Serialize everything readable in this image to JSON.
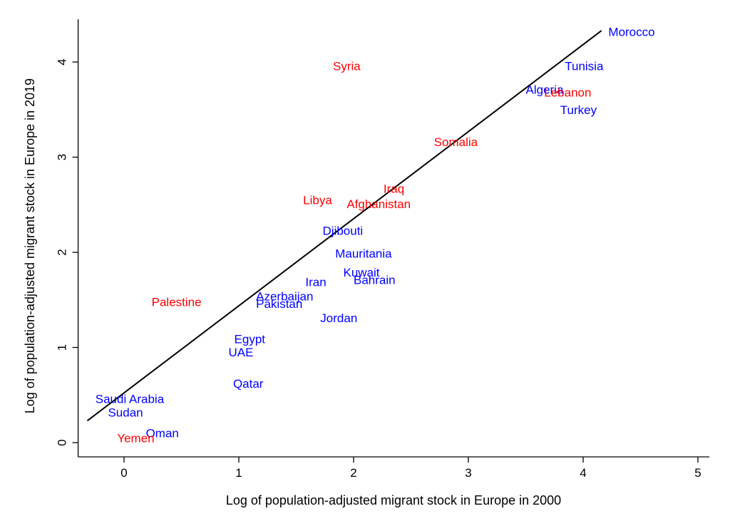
{
  "chart_data": {
    "type": "scatter",
    "title": "",
    "xlabel": "Log of population-adjusted migrant stock in Europe in 2000",
    "ylabel": "Log of population-adjusted migrant stock in Europe in 2019",
    "xlim": [
      -0.4,
      5.1
    ],
    "ylim": [
      -0.15,
      4.45
    ],
    "xticks": [
      0,
      1,
      2,
      3,
      4,
      5
    ],
    "yticks": [
      0,
      1,
      2,
      3,
      4
    ],
    "grid": false,
    "legend": "none",
    "colors": {
      "blue": "#0000ff",
      "red": "#ff0000",
      "line": "#000000"
    },
    "fit_line": {
      "x": [
        -0.32,
        4.16
      ],
      "y": [
        0.23,
        4.33
      ]
    },
    "points": [
      {
        "label": "Morocco",
        "x": 4.22,
        "y": 4.32,
        "color": "blue"
      },
      {
        "label": "Tunisia",
        "x": 3.84,
        "y": 3.96,
        "color": "blue"
      },
      {
        "label": "Algeria",
        "x": 3.5,
        "y": 3.71,
        "color": "blue"
      },
      {
        "label": "Lebanon",
        "x": 3.66,
        "y": 3.68,
        "color": "red"
      },
      {
        "label": "Turkey",
        "x": 3.8,
        "y": 3.5,
        "color": "blue"
      },
      {
        "label": "Syria",
        "x": 1.82,
        "y": 3.96,
        "color": "red"
      },
      {
        "label": "Somalia",
        "x": 2.7,
        "y": 3.16,
        "color": "red"
      },
      {
        "label": "Iraq",
        "x": 2.26,
        "y": 2.67,
        "color": "red"
      },
      {
        "label": "Libya",
        "x": 1.56,
        "y": 2.55,
        "color": "red"
      },
      {
        "label": "Afghanistan",
        "x": 1.94,
        "y": 2.51,
        "color": "red"
      },
      {
        "label": "Djibouti",
        "x": 1.73,
        "y": 2.23,
        "color": "blue"
      },
      {
        "label": "Mauritania",
        "x": 1.84,
        "y": 1.99,
        "color": "blue"
      },
      {
        "label": "Kuwait",
        "x": 1.91,
        "y": 1.79,
        "color": "blue"
      },
      {
        "label": "Bahrain",
        "x": 2.0,
        "y": 1.71,
        "color": "blue"
      },
      {
        "label": "Iran",
        "x": 1.58,
        "y": 1.69,
        "color": "blue"
      },
      {
        "label": "Azerbaijan",
        "x": 1.15,
        "y": 1.54,
        "color": "blue"
      },
      {
        "label": "Pakistan",
        "x": 1.15,
        "y": 1.46,
        "color": "blue"
      },
      {
        "label": "Palestine",
        "x": 0.24,
        "y": 1.48,
        "color": "red"
      },
      {
        "label": "Jordan",
        "x": 1.71,
        "y": 1.31,
        "color": "blue"
      },
      {
        "label": "Egypt",
        "x": 0.96,
        "y": 1.09,
        "color": "blue"
      },
      {
        "label": "UAE",
        "x": 0.91,
        "y": 0.95,
        "color": "blue"
      },
      {
        "label": "Qatar",
        "x": 0.95,
        "y": 0.62,
        "color": "blue"
      },
      {
        "label": "Saudi Arabia",
        "x": -0.25,
        "y": 0.46,
        "color": "blue"
      },
      {
        "label": "Sudan",
        "x": -0.14,
        "y": 0.32,
        "color": "blue"
      },
      {
        "label": "Oman",
        "x": 0.19,
        "y": 0.1,
        "color": "blue"
      },
      {
        "label": "Yemen",
        "x": -0.06,
        "y": 0.05,
        "color": "red"
      }
    ]
  }
}
